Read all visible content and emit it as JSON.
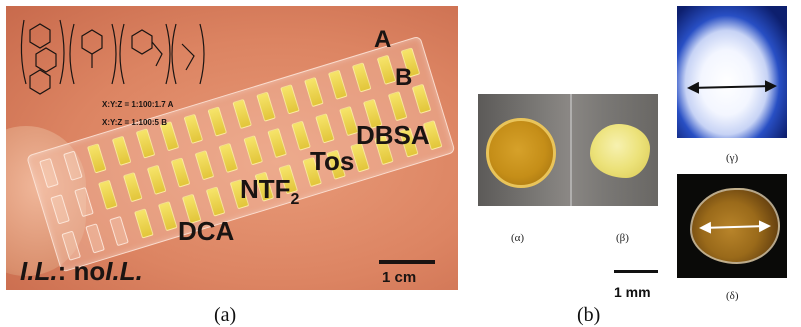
{
  "panel_a": {
    "labels": {
      "a": "A",
      "b": "B",
      "dbsa": "DBSA",
      "tos": "Tos",
      "ntf": "NTF",
      "ntf_sub": "2",
      "dca": "DCA",
      "il_prefix": "I.L.",
      "il_sep": ":",
      "il_no": " no",
      "il_suffix": "I.L."
    },
    "ratios": [
      "X:Y:Z = 1:100:1.7  A",
      "X:Y:Z = 1:100:5   B"
    ],
    "scale_bar": "1 cm",
    "caption": "(a)"
  },
  "panel_b": {
    "labels": {
      "alpha": "(α)",
      "beta": "(β)",
      "gamma": "(γ)",
      "delta": "(δ)"
    },
    "scale_bar": "1 mm",
    "caption": "(b)"
  },
  "colors": {
    "background_a": "#dc8462",
    "well_fill": "#f0d84e",
    "gamma_halo": "#284fc4",
    "arrow_gamma": "#111111",
    "arrow_delta": "#ffffff"
  }
}
